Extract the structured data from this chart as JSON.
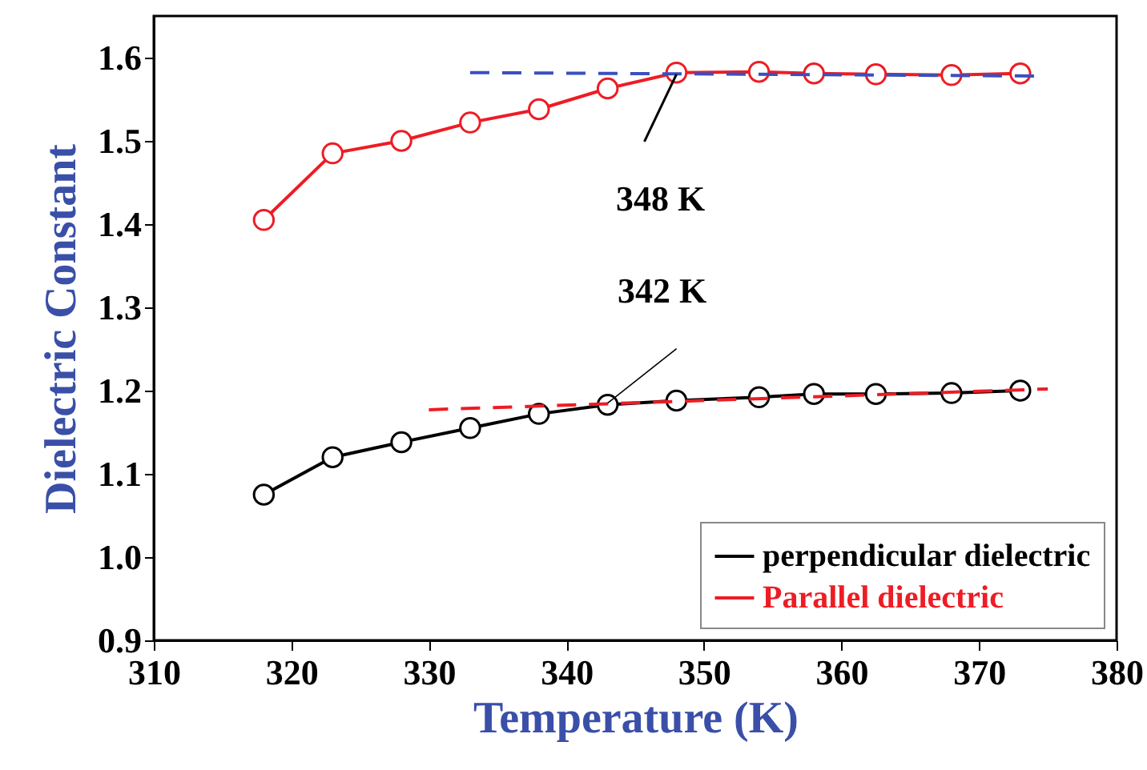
{
  "chart_data": {
    "type": "line",
    "xlabel": "Temperature (K)",
    "ylabel": "Dielectric Constant",
    "xlim": [
      310,
      380
    ],
    "xticks": [
      310,
      320,
      330,
      340,
      350,
      360,
      370,
      380
    ],
    "ylim": [
      0.9,
      1.65
    ],
    "yticks": [
      0.9,
      {
        "value": 1.0,
        "label": "1.0"
      },
      1.1,
      1.2,
      1.3,
      1.4,
      1.5,
      1.6
    ],
    "grid": false,
    "legend": "bottom right",
    "marker": "circle",
    "series": [
      {
        "name": "perpendicular dielectric",
        "color": "#000000",
        "x": [
          318,
          323,
          328,
          333,
          338,
          343,
          348,
          354,
          358,
          362.5,
          368,
          373
        ],
        "values": [
          1.075,
          1.12,
          1.138,
          1.155,
          1.172,
          1.183,
          1.188,
          1.192,
          1.196,
          1.196,
          1.197,
          1.2
        ]
      },
      {
        "name": "Parallel dielectric",
        "color": "#ee1c24",
        "x": [
          318,
          323,
          328,
          333,
          338,
          343,
          348,
          354,
          358,
          362.5,
          368,
          373
        ],
        "values": [
          1.405,
          1.485,
          1.5,
          1.522,
          1.538,
          1.563,
          1.582,
          1.583,
          1.581,
          1.58,
          1.579,
          1.581
        ]
      },
      {
        "type": "line",
        "color": "#3a4fbf",
        "line_style": "dashed",
        "marker": "none",
        "x": [
          333,
          374
        ],
        "values": [
          1.582,
          1.578
        ]
      },
      {
        "type": "line",
        "color": "#ee1c24",
        "line_style": "dashed",
        "marker": "none",
        "x": [
          330,
          375
        ],
        "values": [
          1.177,
          1.202
        ]
      }
    ],
    "annotations": [
      {
        "text": "348 K",
        "x": 348,
        "y": 1.58
      },
      {
        "text": "342 K",
        "x": 343,
        "y": 1.185
      }
    ]
  }
}
